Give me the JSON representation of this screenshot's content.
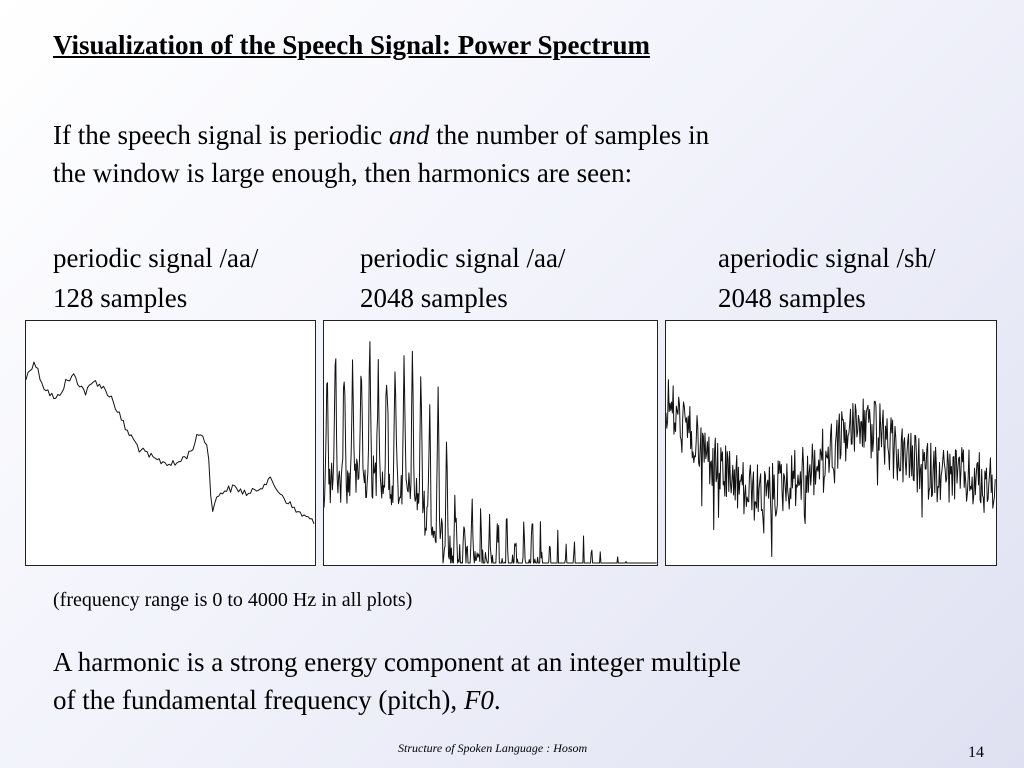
{
  "slide": {
    "title": "Visualization of the Speech Signal: Power Spectrum",
    "intro": {
      "line1_a": "If the speech signal is periodic ",
      "line1_em": "and",
      "line1_b": " the number of samples in",
      "line2": "the window is large enough, then harmonics are seen:"
    },
    "plots": [
      {
        "label_line1": "periodic signal /aa/",
        "label_line2": "128 samples"
      },
      {
        "label_line1": "periodic signal /aa/",
        "label_line2": "2048 samples"
      },
      {
        "label_line1": "aperiodic signal /sh/",
        "label_line2": "2048 samples"
      }
    ],
    "note": "(frequency range is 0 to 4000 Hz in all plots)",
    "harmonic": {
      "line1": "A harmonic is a strong energy component at an integer multiple",
      "line2_a": "of the fundamental frequency (pitch), ",
      "line2_em": "F0",
      "line2_b": "."
    },
    "footer": "Structure of Spoken Language : Hosom",
    "page_number": "14"
  },
  "chart_data": [
    {
      "type": "line",
      "xlim": [
        0,
        4000
      ],
      "x_unit": "Hz",
      "samples": 128,
      "harmonics_visible": false
    },
    {
      "type": "line",
      "xlim": [
        0,
        4000
      ],
      "x_unit": "Hz",
      "samples": 2048,
      "harmonics_visible": true
    },
    {
      "type": "line",
      "xlim": [
        0,
        4000
      ],
      "x_unit": "Hz",
      "samples": 2048,
      "harmonics_visible": false
    }
  ]
}
